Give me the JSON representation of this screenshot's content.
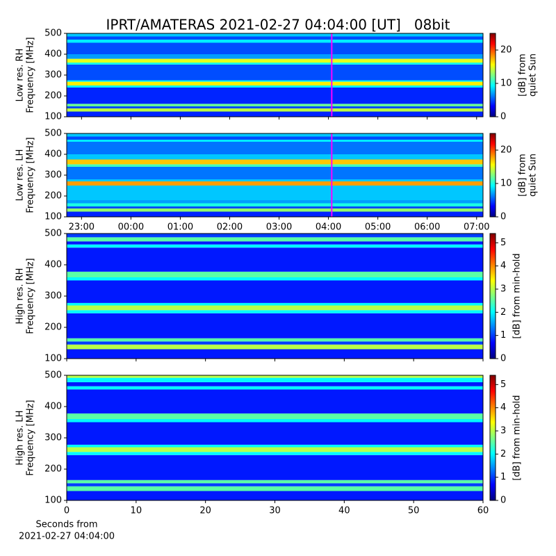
{
  "title": "IPRT/AMATERAS 2021-02-27 04:04:00 [UT]   08bit",
  "chart_data": [
    {
      "type": "heatmap",
      "ylabel": [
        "Low res. RH",
        "Frequency [MHz]"
      ],
      "ylim": [
        100,
        500
      ],
      "yticks": [
        100,
        200,
        300,
        400,
        500
      ],
      "xlim": [
        22.7,
        31.13
      ],
      "xticks": [
        23,
        24,
        25,
        26,
        27,
        28,
        29,
        30,
        31
      ],
      "tick_labels": false,
      "cursor": {
        "x": 28.0667,
        "color": "#ff00ff"
      },
      "y_bins": [
        100,
        125,
        140,
        150,
        162,
        240,
        250,
        268,
        275,
        350,
        360,
        378,
        400,
        455,
        470,
        485,
        500
      ],
      "values": [
        4,
        14,
        5,
        12,
        4,
        9,
        16,
        9,
        5,
        10,
        15,
        7,
        5,
        9,
        5,
        8
      ],
      "clim": [
        0,
        25
      ],
      "cticks": [
        0,
        10,
        20
      ],
      "clabel": [
        "[dB] from",
        "quiet Sun"
      ]
    },
    {
      "type": "heatmap",
      "ylabel": [
        "Low res. LH",
        "Frequency [MHz]"
      ],
      "ylim": [
        100,
        500
      ],
      "yticks": [
        100,
        200,
        300,
        400,
        500
      ],
      "xlim": [
        22.7,
        31.13
      ],
      "xticks": [
        {
          "value": 23,
          "label": "23:00"
        },
        {
          "value": 24,
          "label": "00:00"
        },
        {
          "value": 25,
          "label": "01:00"
        },
        {
          "value": 26,
          "label": "02:00"
        },
        {
          "value": 27,
          "label": "03:00"
        },
        {
          "value": 28,
          "label": "04:00"
        },
        {
          "value": 29,
          "label": "05:00"
        },
        {
          "value": 30,
          "label": "06:00"
        },
        {
          "value": 31,
          "label": "07:00"
        }
      ],
      "tick_labels": true,
      "cursor": {
        "x": 28.0667,
        "color": "#ff00ff"
      },
      "y_bins": [
        100,
        125,
        140,
        150,
        165,
        180,
        240,
        250,
        270,
        280,
        340,
        352,
        375,
        400,
        460,
        470,
        485,
        500
      ],
      "values": [
        4,
        13,
        5,
        10,
        7,
        8,
        8,
        18,
        8,
        6,
        11,
        17,
        8,
        6,
        9,
        5,
        8
      ],
      "clim": [
        0,
        25
      ],
      "cticks": [
        0,
        10,
        20
      ],
      "clabel": [
        "[dB] from",
        "quiet Sun"
      ]
    },
    {
      "type": "heatmap",
      "ylabel": [
        "High res. RH",
        "Frequency [MHz]"
      ],
      "ylim": [
        100,
        500
      ],
      "yticks": [
        100,
        200,
        300,
        400,
        500
      ],
      "xlim": [
        0,
        60
      ],
      "xticks": [
        0,
        10,
        20,
        30,
        40,
        50,
        60
      ],
      "tick_labels": false,
      "y_bins": [
        100,
        130,
        145,
        155,
        165,
        245,
        255,
        270,
        278,
        350,
        360,
        378,
        455,
        465,
        475,
        488,
        500
      ],
      "values": [
        0.8,
        3,
        1,
        2.5,
        0.8,
        2,
        3,
        2,
        0.8,
        2,
        2.5,
        0.8,
        2,
        0.8,
        2.5,
        1
      ],
      "clim": [
        0,
        5.4
      ],
      "cticks": [
        0,
        1,
        2,
        3,
        4,
        5
      ],
      "clabel": [
        "[dB] from min-hold"
      ]
    },
    {
      "type": "heatmap",
      "ylabel": [
        "High res. LH",
        "Frequency [MHz]"
      ],
      "ylim": [
        100,
        500
      ],
      "yticks": [
        100,
        200,
        300,
        400,
        500
      ],
      "xlim": [
        0,
        60
      ],
      "xticks": [
        0,
        10,
        20,
        30,
        40,
        50,
        60
      ],
      "tick_labels": true,
      "xlabel": [
        "Seconds from",
        "2021-02-27 04:04:00"
      ],
      "y_bins": [
        100,
        130,
        145,
        155,
        165,
        245,
        255,
        270,
        278,
        350,
        360,
        378,
        455,
        465,
        478,
        492,
        500
      ],
      "values": [
        0.8,
        2.5,
        1,
        2.5,
        0.8,
        2,
        3,
        2,
        0.8,
        2,
        2.5,
        0.8,
        2,
        0.8,
        2,
        3
      ],
      "clim": [
        0,
        5.4
      ],
      "cticks": [
        0,
        1,
        2,
        3,
        4,
        5
      ],
      "clabel": [
        "[dB] from min-hold"
      ]
    }
  ]
}
